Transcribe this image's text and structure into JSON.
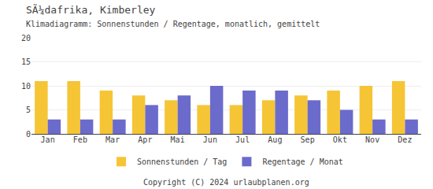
{
  "chart_data": {
    "type": "bar",
    "title": "SÃ¼dafrika, Kimberley",
    "subtitle": "Klimadiagramm: Sonnenstunden / Regentage, monatlich, gemittelt",
    "categories": [
      "Jan",
      "Feb",
      "Mar",
      "Apr",
      "Mai",
      "Jun",
      "Jul",
      "Aug",
      "Sep",
      "Okt",
      "Nov",
      "Dez"
    ],
    "series": [
      {
        "name": "Sonnenstunden / Tag",
        "color": "#F5C535",
        "values": [
          11,
          11,
          9,
          8,
          7,
          6,
          6,
          7,
          8,
          9,
          10,
          11
        ]
      },
      {
        "name": "Regentage / Monat",
        "color": "#6B6BCC",
        "values": [
          3,
          3,
          3,
          6,
          8,
          10,
          9,
          9,
          7,
          5,
          3,
          3
        ]
      }
    ],
    "ylim": [
      0,
      20
    ],
    "yticks": [
      0,
      5,
      10,
      15,
      20
    ],
    "grid": true,
    "legend": "bottom",
    "annotations": [
      "Copyright (C) 2024 urlaubplanen.org"
    ]
  }
}
